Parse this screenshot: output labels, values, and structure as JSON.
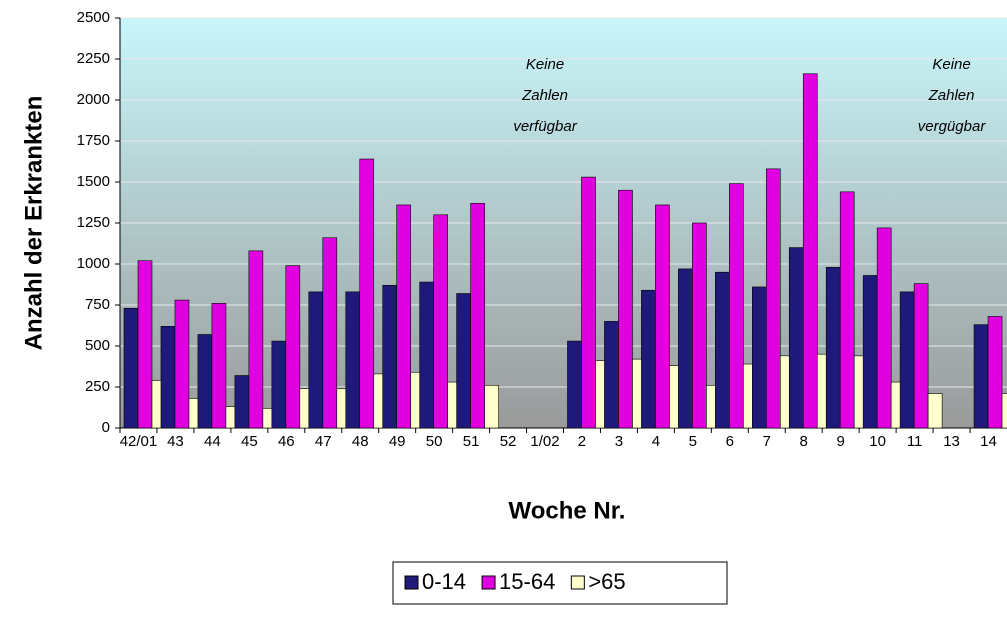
{
  "chart_data": {
    "type": "bar",
    "y_label": "Anzahl der Erkrankten",
    "x_label": "Woche Nr.",
    "categories": [
      "42/01",
      "43",
      "44",
      "45",
      "46",
      "47",
      "48",
      "49",
      "50",
      "51",
      "52",
      "1/02",
      "2",
      "3",
      "4",
      "5",
      "6",
      "7",
      "8",
      "9",
      "10",
      "11",
      "13",
      "14"
    ],
    "series": [
      {
        "name": "0-14",
        "color": "#1f1a7a",
        "values": [
          730,
          620,
          570,
          320,
          530,
          830,
          830,
          870,
          890,
          820,
          null,
          null,
          530,
          650,
          840,
          970,
          950,
          860,
          1100,
          980,
          930,
          830,
          null,
          630
        ]
      },
      {
        "name": "15-64",
        "color": "#e000e0",
        "values": [
          1020,
          780,
          760,
          1080,
          990,
          1160,
          1640,
          1360,
          1300,
          1370,
          null,
          null,
          1530,
          1450,
          1360,
          1250,
          1490,
          1580,
          2160,
          1440,
          1220,
          880,
          null,
          680
        ]
      },
      {
        "name": ">65",
        "color": "#ffffcc",
        "values": [
          290,
          180,
          130,
          120,
          240,
          240,
          330,
          340,
          280,
          260,
          null,
          null,
          410,
          420,
          380,
          260,
          390,
          440,
          450,
          440,
          280,
          210,
          null,
          210
        ]
      }
    ],
    "annotations": [
      {
        "category": "1/02",
        "lines": [
          "Keine",
          "Zahlen",
          "verfügbar"
        ]
      },
      {
        "category": "13",
        "lines": [
          "Keine",
          "Zahlen",
          "vergügbar"
        ]
      }
    ],
    "ylim": [
      0,
      2500
    ],
    "yticks": [
      0,
      250,
      500,
      750,
      1000,
      1250,
      1500,
      1750,
      2000,
      2250,
      2500
    ],
    "grid": true
  }
}
